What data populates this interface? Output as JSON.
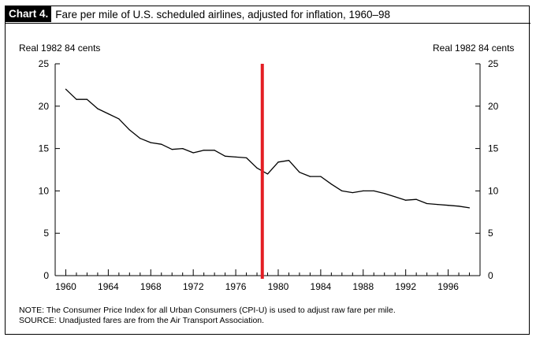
{
  "header": {
    "tag": "Chart 4.",
    "title": "Fare per mile of U.S. scheduled airlines, adjusted for inflation, 1960–98"
  },
  "chart_data": {
    "type": "line",
    "title": "Fare per mile of U.S. scheduled airlines, adjusted for inflation, 1960–98",
    "ylabel_left": "Real 1982  84 cents",
    "ylabel_right": "Real 1982  84 cents",
    "xlabel": "",
    "xlim": [
      1959,
      1999
    ],
    "ylim": [
      0,
      25
    ],
    "yticks": [
      0,
      5,
      10,
      15,
      20,
      25
    ],
    "xticks": [
      1960,
      1964,
      1968,
      1972,
      1976,
      1980,
      1984,
      1988,
      1992,
      1996
    ],
    "grid": false,
    "line_color": "#000000",
    "marker_line": {
      "x": 1978.5,
      "color": "#e31e24"
    },
    "series": [
      {
        "x": [
          1960,
          1961,
          1962,
          1963,
          1964,
          1965,
          1966,
          1967,
          1968,
          1969,
          1970,
          1971,
          1972,
          1973,
          1974,
          1975,
          1976,
          1977,
          1978,
          1979,
          1980,
          1981,
          1982,
          1983,
          1984,
          1985,
          1986,
          1987,
          1988,
          1989,
          1990,
          1991,
          1992,
          1993,
          1994,
          1995,
          1996,
          1997,
          1998
        ],
        "values": [
          22.0,
          20.8,
          20.8,
          19.7,
          19.1,
          18.5,
          17.2,
          16.2,
          15.7,
          15.5,
          14.9,
          15.0,
          14.5,
          14.8,
          14.8,
          14.1,
          14.0,
          13.9,
          12.7,
          12.0,
          13.4,
          13.6,
          12.2,
          11.7,
          11.7,
          10.8,
          10.0,
          9.8,
          10.0,
          10.0,
          9.7,
          9.3,
          8.9,
          9.0,
          8.5,
          8.4,
          8.3,
          8.2,
          8.0
        ]
      }
    ]
  },
  "footer": {
    "note_label": "NOTE:",
    "note_text": " The Consumer Price Index for all Urban Consumers (CPI-U) is used to adjust raw fare per mile.",
    "source_label": "SOURCE:",
    "source_text": " Unadjusted fares are from the Air Transport Association."
  }
}
